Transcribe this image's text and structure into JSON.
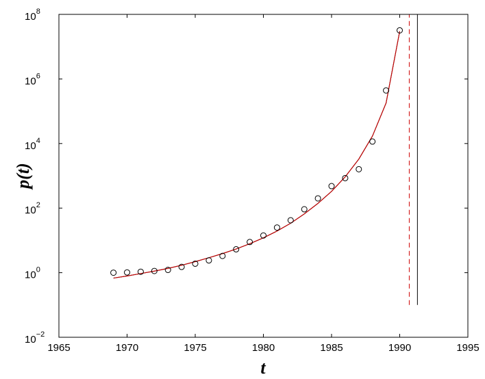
{
  "chart_data": {
    "type": "scatter",
    "title": "",
    "xlabel": "t",
    "ylabel": "p(t)",
    "xlim": [
      1965,
      1995
    ],
    "ylim": [
      0.01,
      100000000
    ],
    "yscale": "log",
    "grid": false,
    "legend": "none",
    "x_ticks": [
      1965,
      1970,
      1975,
      1980,
      1985,
      1990,
      1995
    ],
    "x_tick_labels": [
      "1965",
      "1970",
      "1975",
      "1980",
      "1985",
      "1990",
      "1995"
    ],
    "y_ticks": [
      0.01,
      1,
      100,
      10000,
      1000000,
      100000000
    ],
    "y_tick_labels": [
      {
        "base": "10",
        "exp": "−2"
      },
      {
        "base": "10",
        "exp": "0"
      },
      {
        "base": "10",
        "exp": "2"
      },
      {
        "base": "10",
        "exp": "4"
      },
      {
        "base": "10",
        "exp": "6"
      },
      {
        "base": "10",
        "exp": "8"
      }
    ],
    "series": [
      {
        "kind": "markers",
        "marker": "open-circle",
        "color": "#000000",
        "x": [
          1969,
          1970,
          1971,
          1972,
          1973,
          1974,
          1975,
          1976,
          1977,
          1978,
          1979,
          1980,
          1981,
          1982,
          1983,
          1984,
          1985,
          1986,
          1987,
          1988,
          1989,
          1990
        ],
        "y": [
          1.0,
          1.02,
          1.07,
          1.13,
          1.22,
          1.51,
          1.9,
          2.4,
          3.3,
          5.3,
          8.9,
          14.2,
          25,
          42,
          92,
          200,
          480,
          850,
          1600,
          11500,
          440000,
          32000000
        ]
      },
      {
        "kind": "line",
        "style": "solid",
        "color": "#000000",
        "x": [
          1969,
          1970,
          1971,
          1972,
          1973,
          1974,
          1975,
          1976,
          1977,
          1978,
          1979,
          1980,
          1981,
          1982,
          1983,
          1984,
          1985,
          1986,
          1987,
          1988,
          1989,
          1990
        ],
        "y": [
          0.68,
          0.79,
          0.94,
          1.12,
          1.36,
          1.7,
          2.2,
          2.9,
          3.9,
          5.4,
          7.9,
          12,
          19.5,
          34,
          66,
          140,
          330,
          930,
          3300,
          17000,
          180000,
          30000000
        ]
      },
      {
        "kind": "line",
        "style": "solid",
        "color": "#cc0000",
        "x": [
          1969,
          1970,
          1971,
          1972,
          1973,
          1974,
          1975,
          1976,
          1977,
          1978,
          1979,
          1980,
          1981,
          1982,
          1983,
          1984,
          1985,
          1986,
          1987,
          1988,
          1989,
          1990
        ],
        "y": [
          0.68,
          0.79,
          0.94,
          1.12,
          1.36,
          1.7,
          2.2,
          2.9,
          3.9,
          5.4,
          7.9,
          12,
          19.5,
          34,
          66,
          140,
          330,
          930,
          3300,
          17000,
          180000,
          30000000
        ]
      }
    ],
    "vertical_lines": [
      {
        "x": 1990.7,
        "style": "dashed",
        "color": "#cc0000",
        "y_from": 0.1,
        "y_to": 100000000
      },
      {
        "x": 1991.3,
        "style": "solid",
        "color": "#000000",
        "y_from": 0.1,
        "y_to": 100000000
      }
    ]
  }
}
